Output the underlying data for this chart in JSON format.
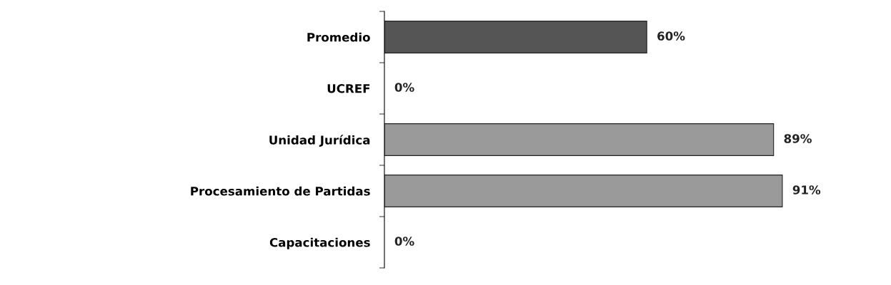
{
  "chart_data": {
    "type": "bar",
    "orientation": "horizontal",
    "categories": [
      "Promedio",
      "UCREF",
      "Unidad Jurídica",
      "Procesamiento de Partidas",
      "Capacitaciones"
    ],
    "values": [
      60,
      0,
      89,
      91,
      0
    ],
    "colors": [
      "#555555",
      "#9a9a9a",
      "#9a9a9a",
      "#9a9a9a",
      "#9a9a9a"
    ],
    "value_labels": [
      "60%",
      "0%",
      "89%",
      "91%",
      "0%"
    ],
    "tick_labels": "y",
    "grid": false,
    "legend": false
  }
}
